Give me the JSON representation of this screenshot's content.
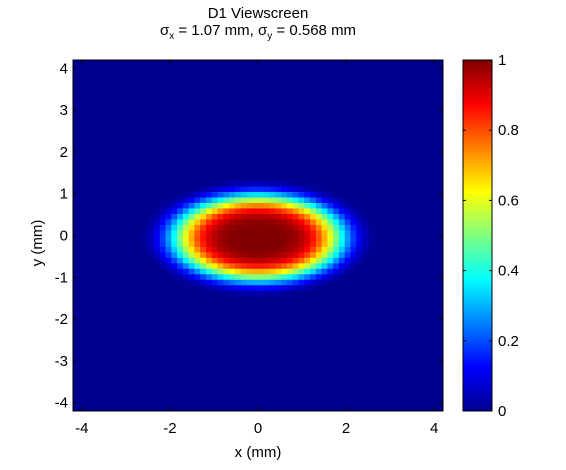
{
  "chart_data": {
    "type": "heatmap",
    "title": "D1 Viewscreen",
    "subtitle": {
      "sigma_x_label": "σ",
      "sigma_x_sub": "x",
      "sigma_x_value": " = 1.07 mm, ",
      "sigma_y_label": "σ",
      "sigma_y_sub": "y",
      "sigma_y_value": " = 0.568 mm"
    },
    "xlabel": "x (mm)",
    "ylabel": "y (mm)",
    "xlim": [
      -4.2,
      4.2
    ],
    "ylim": [
      -4.2,
      4.2
    ],
    "xticks": [
      -4,
      -2,
      0,
      2,
      4
    ],
    "xticklabels": [
      "-4",
      "-2",
      "0",
      "2",
      "4"
    ],
    "yticks": [
      4,
      3,
      2,
      1,
      0,
      -1,
      -2,
      -3,
      -4
    ],
    "yticklabels": [
      "4",
      "3",
      "2",
      "1",
      "0",
      "-1",
      "-2",
      "-3",
      "-4"
    ],
    "colormap": "jet",
    "colorbar": {
      "range": [
        0,
        1
      ],
      "ticks": [
        1,
        0.8,
        0.6,
        0.4,
        0.2,
        0
      ],
      "ticklabels": [
        "1",
        "0.8",
        "0.6",
        "0.4",
        "0.2",
        "0"
      ]
    },
    "spot": {
      "center_x_mm": 0.0,
      "center_y_mm": -0.05,
      "sigma_x_mm": 1.07,
      "sigma_y_mm": 0.568,
      "peak": 1.0
    },
    "grid": false
  }
}
